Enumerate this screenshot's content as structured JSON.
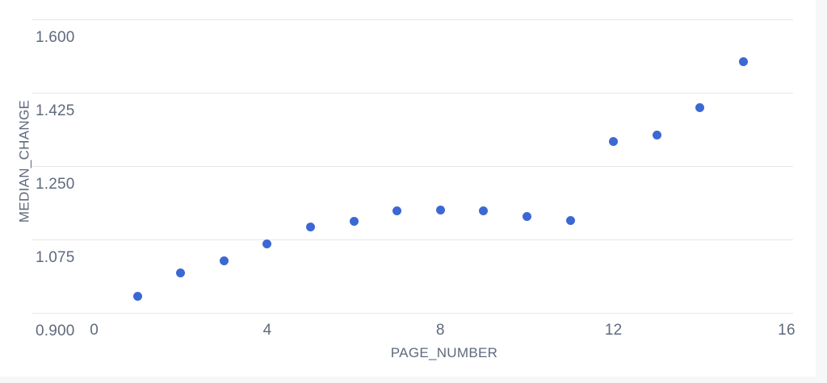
{
  "page": {
    "background_color": "#f6f7f7"
  },
  "card": {
    "background_color": "#ffffff"
  },
  "chart_data": {
    "type": "scatter",
    "title": "",
    "xlabel": "PAGE_NUMBER",
    "ylabel": "MEDIAN_CHANGE",
    "x_ticks": [
      "0",
      "4",
      "8",
      "12",
      "16"
    ],
    "y_ticks": [
      "1.600",
      "1.425",
      "1.250",
      "1.075",
      "0.900"
    ],
    "xlim": [
      -1.43,
      16.15
    ],
    "ylim": [
      0.9,
      1.6
    ],
    "grid": "horizontal-gridlines-only",
    "legend": "none",
    "points": [
      [
        1,
        0.94
      ],
      [
        2,
        0.996
      ],
      [
        3,
        1.025
      ],
      [
        4,
        1.065
      ],
      [
        5,
        1.104
      ],
      [
        6,
        1.119
      ],
      [
        7,
        1.143
      ],
      [
        8,
        1.145
      ],
      [
        9,
        1.144
      ],
      [
        10,
        1.129
      ],
      [
        11,
        1.121
      ],
      [
        12,
        1.308
      ],
      [
        13,
        1.324
      ],
      [
        14,
        1.39
      ],
      [
        15,
        1.499
      ]
    ],
    "colors": {
      "point": "#3b68d3",
      "gridline": "#e7e7e7",
      "tick_label": "#5f6a7d",
      "axis_title": "#5f6a7d"
    }
  }
}
